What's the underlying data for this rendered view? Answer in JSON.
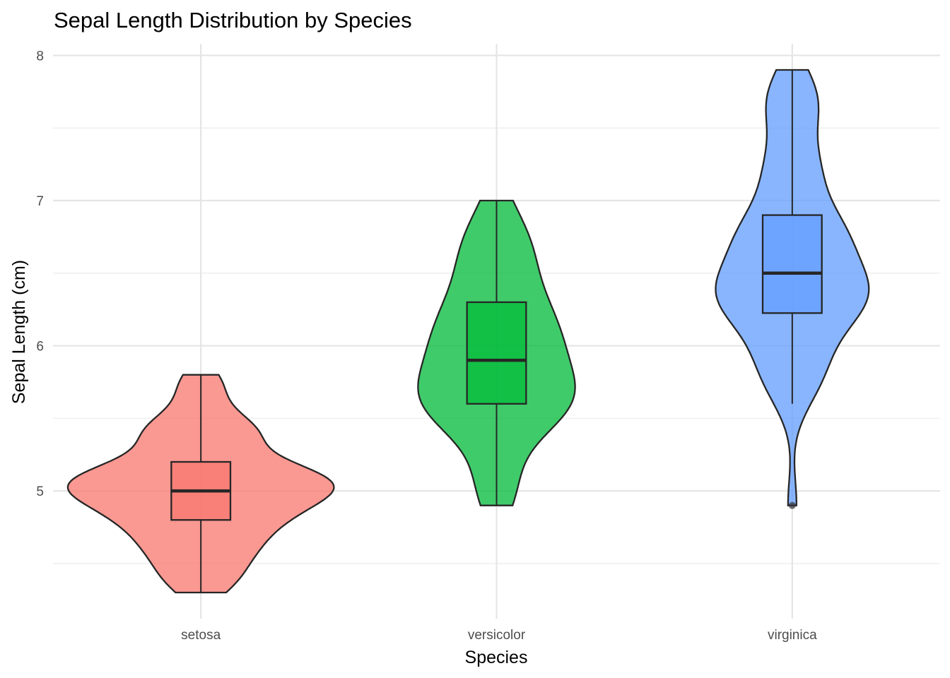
{
  "chart_data": {
    "type": "violin",
    "title": "Sepal Length Distribution by Species",
    "xlabel": "Species",
    "ylabel": "Sepal Length (cm)",
    "categories": [
      "setosa",
      "versicolor",
      "virginica"
    ],
    "yticks": [
      5,
      6,
      7,
      8
    ],
    "ylim": [
      4.12,
      8.08
    ],
    "grid": true,
    "colors": [
      "#F8766D",
      "#00BA38",
      "#619CFF"
    ],
    "boxplots": [
      {
        "min": 4.3,
        "q1": 4.8,
        "median": 5.0,
        "q3": 5.2,
        "max": 5.8,
        "outliers": []
      },
      {
        "min": 4.9,
        "q1": 5.6,
        "median": 5.9,
        "q3": 6.3,
        "max": 7.0,
        "outliers": []
      },
      {
        "min": 5.6,
        "q1": 6.225,
        "median": 6.5,
        "q3": 6.9,
        "max": 7.9,
        "outliers": [
          4.9
        ]
      }
    ],
    "observations": [
      {
        "4.3": 1,
        "4.4": 3,
        "4.5": 1,
        "4.6": 4,
        "4.7": 2,
        "4.8": 5,
        "4.9": 4,
        "5.0": 8,
        "5.1": 8,
        "5.2": 3,
        "5.3": 1,
        "5.4": 5,
        "5.5": 2,
        "5.7": 2,
        "5.8": 1
      },
      {
        "4.9": 1,
        "5.0": 2,
        "5.1": 1,
        "5.2": 1,
        "5.4": 1,
        "5.5": 5,
        "5.6": 5,
        "5.7": 5,
        "5.8": 3,
        "5.9": 2,
        "6.0": 4,
        "6.1": 4,
        "6.2": 2,
        "6.3": 3,
        "6.4": 2,
        "6.5": 1,
        "6.6": 2,
        "6.7": 3,
        "6.8": 1,
        "6.9": 1,
        "7.0": 1
      },
      {
        "4.9": 1,
        "5.6": 1,
        "5.7": 1,
        "5.8": 3,
        "5.9": 1,
        "6.0": 2,
        "6.1": 2,
        "6.2": 2,
        "6.3": 6,
        "6.4": 5,
        "6.5": 4,
        "6.7": 5,
        "6.8": 3,
        "6.9": 3,
        "7.1": 1,
        "7.2": 3,
        "7.3": 1,
        "7.4": 1,
        "7.6": 1,
        "7.7": 4,
        "7.9": 1
      }
    ]
  }
}
